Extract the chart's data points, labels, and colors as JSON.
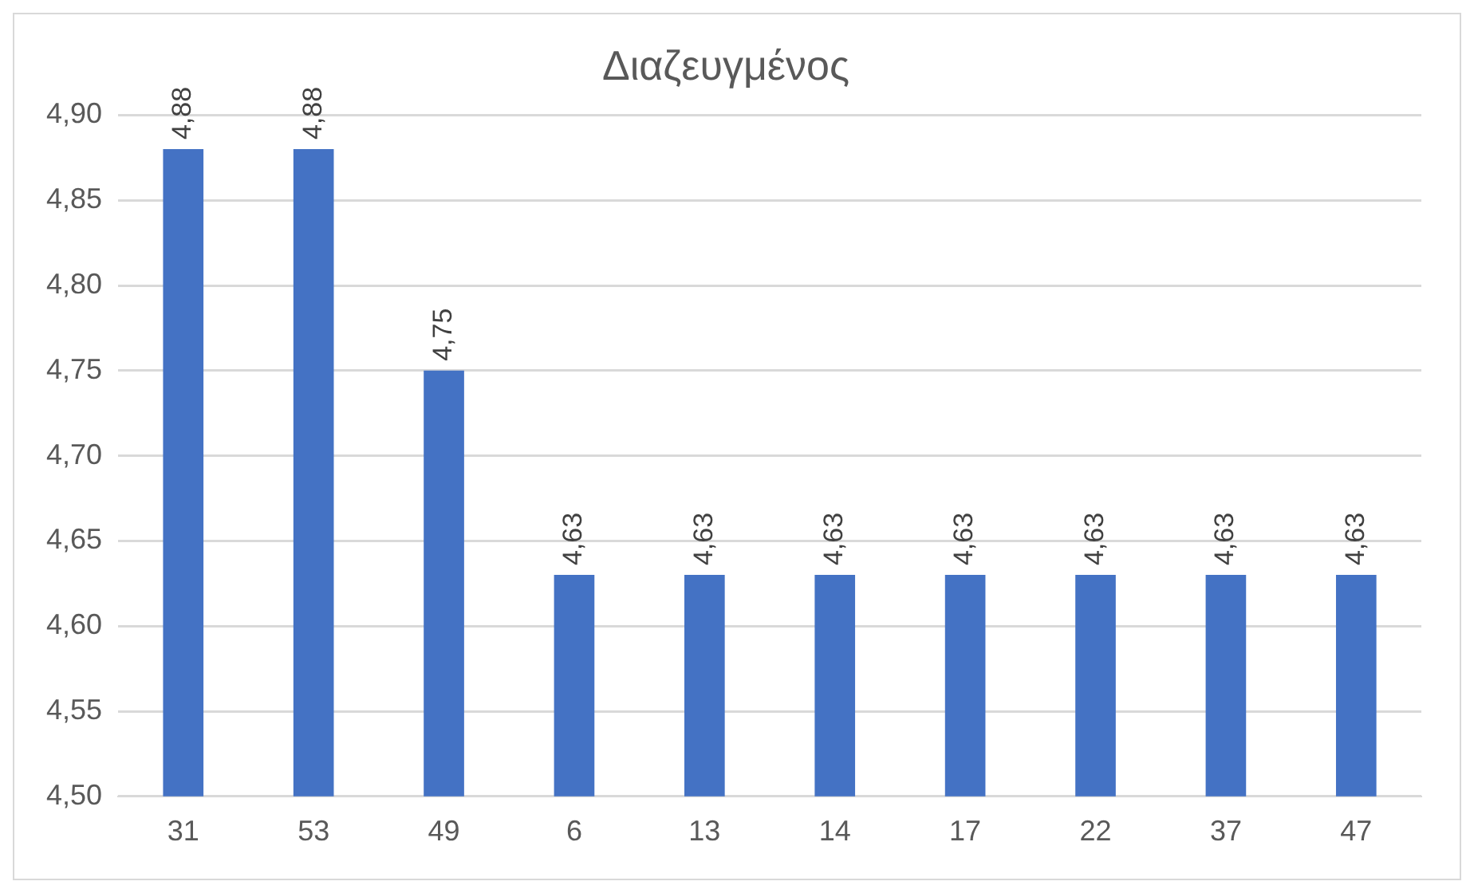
{
  "chart_data": {
    "type": "bar",
    "title": "Διαζευγμένος",
    "categories": [
      "31",
      "53",
      "49",
      "6",
      "13",
      "14",
      "17",
      "22",
      "37",
      "47"
    ],
    "values": [
      4.88,
      4.88,
      4.75,
      4.63,
      4.63,
      4.63,
      4.63,
      4.63,
      4.63,
      4.63
    ],
    "value_labels": [
      "4,88",
      "4,88",
      "4,75",
      "4,63",
      "4,63",
      "4,63",
      "4,63",
      "4,63",
      "4,63",
      "4,63"
    ],
    "color": "#4472c4",
    "ylim": [
      4.5,
      4.9
    ],
    "yticks": [
      {
        "value": 4.5,
        "label": "4,50"
      },
      {
        "value": 4.55,
        "label": "4,55"
      },
      {
        "value": 4.6,
        "label": "4,60"
      },
      {
        "value": 4.65,
        "label": "4,65"
      },
      {
        "value": 4.7,
        "label": "4,70"
      },
      {
        "value": 4.75,
        "label": "4,75"
      },
      {
        "value": 4.8,
        "label": "4,80"
      },
      {
        "value": 4.85,
        "label": "4,85"
      },
      {
        "value": 4.9,
        "label": "4,90"
      }
    ],
    "grid": "y",
    "legend": false
  }
}
